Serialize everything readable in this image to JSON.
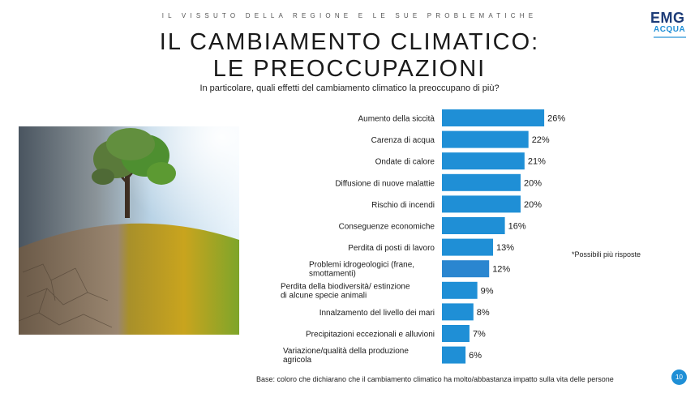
{
  "header": {
    "kicker": "IL VISSUTO DELLA REGIONE E LE SUE PROBLEMATICHE",
    "title_line1": "IL CAMBIAMENTO CLIMATICO:",
    "title_line2": "LE PREOCCUPAZIONI",
    "question": "In particolare, quali effetti del cambiamento climatico la preoccupano di più?"
  },
  "logo": {
    "line1": "EMG",
    "line2": "ACQUA"
  },
  "image": {
    "icon": "climate-tree-photo"
  },
  "colors": {
    "bar": "#1f8fd6",
    "bar_alt": "#2a86d0"
  },
  "chart_data": {
    "type": "bar",
    "orientation": "horizontal",
    "categories": [
      "Aumento della siccità",
      "Carenza di acqua",
      "Ondate di calore",
      "Diffusione di nuove malattie",
      "Rischio di incendi",
      "Conseguenze economiche",
      "Perdita di posti di lavoro",
      "Problemi idrogeologici (frane, smottamenti)",
      "Perdita della biodiversità/ estinzione di alcune specie animali",
      "Innalzamento del livello dei mari",
      "Precipitazioni eccezionali e alluvioni",
      "Variazione/qualità della produzione agricola"
    ],
    "values": [
      26,
      22,
      21,
      20,
      20,
      16,
      13,
      12,
      9,
      8,
      7,
      6
    ],
    "value_labels": [
      "26%",
      "22%",
      "21%",
      "20%",
      "20%",
      "16%",
      "13%",
      "12%",
      "9%",
      "8%",
      "7%",
      "6%"
    ],
    "category_lines": [
      [
        "Aumento della siccità"
      ],
      [
        "Carenza di acqua"
      ],
      [
        "Ondate di calore"
      ],
      [
        "Diffusione di nuove malattie"
      ],
      [
        "Rischio di incendi"
      ],
      [
        "Conseguenze economiche"
      ],
      [
        "Perdita di posti di lavoro"
      ],
      [
        "Problemi idrogeologici (frane,",
        "smottamenti)"
      ],
      [
        "Perdita della biodiversità/ estinzione",
        "di alcune specie animali"
      ],
      [
        "Innalzamento del livello dei mari"
      ],
      [
        "Precipitazioni eccezionali e alluvioni"
      ],
      [
        "Variazione/qualità della produzione",
        "agricola"
      ]
    ]
  },
  "footer": {
    "note": "*Possibili più risposte",
    "base": "Base: coloro che dichiarano che il cambiamento climatico ha molto/abbastanza impatto sulla vita delle persone",
    "page": "10"
  }
}
